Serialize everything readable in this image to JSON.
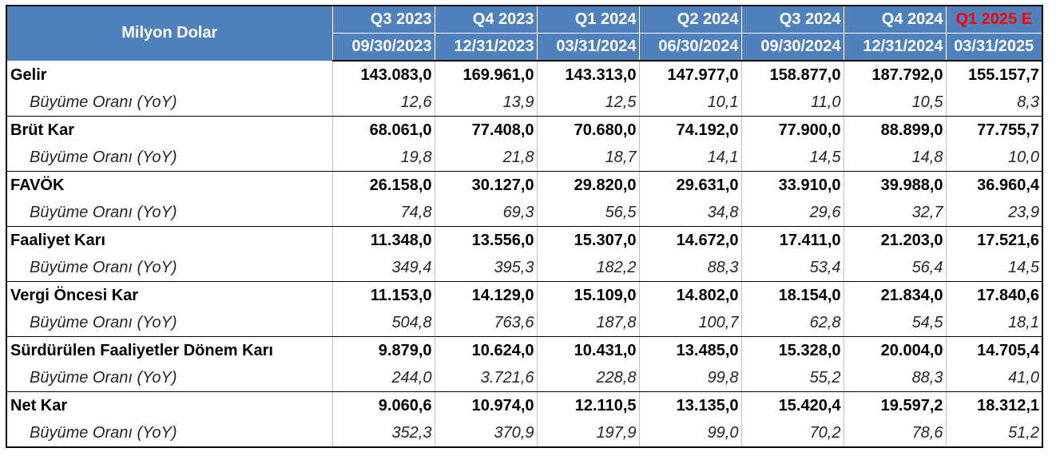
{
  "table": {
    "corner_label": "Milyon Dolar",
    "columns": [
      {
        "quarter": "Q3 2023",
        "date": "09/30/2023"
      },
      {
        "quarter": "Q4 2023",
        "date": "12/31/2023"
      },
      {
        "quarter": "Q1 2024",
        "date": "03/31/2024"
      },
      {
        "quarter": "Q2 2024",
        "date": "06/30/2024"
      },
      {
        "quarter": "Q3 2024",
        "date": "09/30/2024"
      },
      {
        "quarter": "Q4 2024",
        "date": "12/31/2024"
      },
      {
        "quarter": "Q1 2025 E",
        "date": "03/31/2025"
      }
    ],
    "estimate_color": "#ff0000",
    "header_bg": "#4f81bd",
    "growth_label": "Büyüme Oranı (YoY)",
    "rows": [
      {
        "label": "Gelir",
        "values": [
          "143.083,0",
          "169.961,0",
          "143.313,0",
          "147.977,0",
          "158.877,0",
          "187.792,0",
          "155.157,7"
        ],
        "growth": [
          "12,6",
          "13,9",
          "12,5",
          "10,1",
          "11,0",
          "10,5",
          "8,3"
        ]
      },
      {
        "label": "Brüt Kar",
        "values": [
          "68.061,0",
          "77.408,0",
          "70.680,0",
          "74.192,0",
          "77.900,0",
          "88.899,0",
          "77.755,7"
        ],
        "growth": [
          "19,8",
          "21,8",
          "18,7",
          "14,1",
          "14,5",
          "14,8",
          "10,0"
        ]
      },
      {
        "label": "FAVÖK",
        "values": [
          "26.158,0",
          "30.127,0",
          "29.820,0",
          "29.631,0",
          "33.910,0",
          "39.988,0",
          "36.960,4"
        ],
        "growth": [
          "74,8",
          "69,3",
          "56,5",
          "34,8",
          "29,6",
          "32,7",
          "23,9"
        ]
      },
      {
        "label": "Faaliyet Karı",
        "values": [
          "11.348,0",
          "13.556,0",
          "15.307,0",
          "14.672,0",
          "17.411,0",
          "21.203,0",
          "17.521,6"
        ],
        "growth": [
          "349,4",
          "395,3",
          "182,2",
          "88,3",
          "53,4",
          "56,4",
          "14,5"
        ]
      },
      {
        "label": "Vergi Öncesi Kar",
        "values": [
          "11.153,0",
          "14.129,0",
          "15.109,0",
          "14.802,0",
          "18.154,0",
          "21.834,0",
          "17.840,6"
        ],
        "growth": [
          "504,8",
          "763,6",
          "187,8",
          "100,7",
          "62,8",
          "54,5",
          "18,1"
        ]
      },
      {
        "label": "Sürdürülen Faaliyetler Dönem Karı",
        "values": [
          "9.879,0",
          "10.624,0",
          "10.431,0",
          "13.485,0",
          "15.328,0",
          "20.004,0",
          "14.705,4"
        ],
        "growth": [
          "244,0",
          "3.721,6",
          "228,8",
          "99,8",
          "55,2",
          "88,3",
          "41,0"
        ]
      },
      {
        "label": "Net Kar",
        "values": [
          "9.060,6",
          "10.974,0",
          "12.110,5",
          "13.135,0",
          "15.420,4",
          "19.597,2",
          "18.312,1"
        ],
        "growth": [
          "352,3",
          "370,9",
          "197,9",
          "99,0",
          "70,2",
          "78,6",
          "51,2"
        ]
      }
    ]
  }
}
